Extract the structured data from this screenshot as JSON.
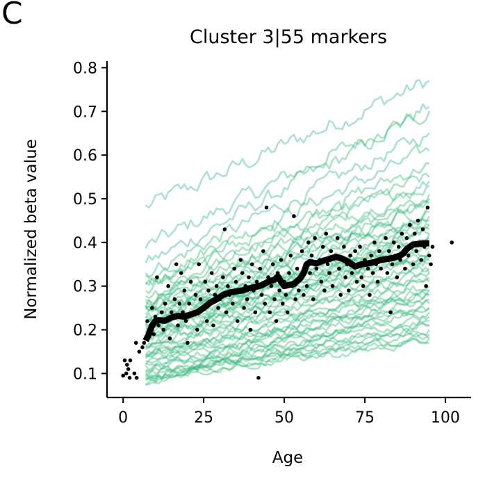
{
  "panel_label": "C",
  "colors": {
    "marker_lines": "#3dbb7f",
    "points": "#000000",
    "trend": "#000000"
  },
  "chart_data": {
    "type": "line",
    "title": "Cluster 3|55 markers",
    "xlabel": "Age",
    "ylabel": "Normalized beta value",
    "xlim": [
      -5,
      108
    ],
    "ylim": [
      0.045,
      0.815
    ],
    "xticks": [
      0,
      25,
      50,
      75,
      100
    ],
    "yticks": [
      0.1,
      0.2,
      0.3,
      0.4,
      0.5,
      0.6,
      0.7,
      0.8
    ],
    "grid": false,
    "legend": "none",
    "marker_lines": {
      "count": 55,
      "age_range": [
        7,
        95
      ],
      "start_values": [
        0.48,
        0.39,
        0.35,
        0.33,
        0.32,
        0.31,
        0.3,
        0.29,
        0.28,
        0.27,
        0.26,
        0.26,
        0.25,
        0.25,
        0.24,
        0.24,
        0.23,
        0.23,
        0.22,
        0.22,
        0.21,
        0.21,
        0.2,
        0.2,
        0.19,
        0.19,
        0.18,
        0.18,
        0.17,
        0.17,
        0.16,
        0.16,
        0.15,
        0.15,
        0.14,
        0.14,
        0.13,
        0.13,
        0.12,
        0.12,
        0.11,
        0.11,
        0.1,
        0.1,
        0.1,
        0.09,
        0.09,
        0.09,
        0.08,
        0.08,
        0.08,
        0.2,
        0.22,
        0.18,
        0.26
      ],
      "end_values": [
        0.77,
        0.71,
        0.7,
        0.65,
        0.61,
        0.58,
        0.55,
        0.54,
        0.53,
        0.51,
        0.5,
        0.49,
        0.48,
        0.47,
        0.46,
        0.45,
        0.44,
        0.43,
        0.42,
        0.42,
        0.41,
        0.4,
        0.39,
        0.38,
        0.37,
        0.36,
        0.35,
        0.34,
        0.33,
        0.32,
        0.31,
        0.3,
        0.29,
        0.28,
        0.28,
        0.27,
        0.26,
        0.25,
        0.24,
        0.23,
        0.22,
        0.21,
        0.2,
        0.19,
        0.18,
        0.18,
        0.17,
        0.21,
        0.25,
        0.29,
        0.33,
        0.37,
        0.4,
        0.44,
        0.36
      ]
    },
    "trend_line": {
      "x": [
        7,
        8,
        9,
        10,
        11,
        13,
        15,
        17,
        19,
        21,
        23,
        25,
        27,
        29,
        31,
        33,
        35,
        37,
        39,
        41,
        43,
        45,
        47,
        48,
        49,
        50,
        51,
        53,
        55,
        56,
        57,
        58,
        60,
        62,
        64,
        66,
        68,
        70,
        72,
        74,
        76,
        78,
        80,
        82,
        84,
        86,
        87,
        88,
        89,
        90,
        92,
        94,
        95
      ],
      "y": [
        0.175,
        0.19,
        0.21,
        0.22,
        0.222,
        0.221,
        0.228,
        0.232,
        0.23,
        0.235,
        0.24,
        0.25,
        0.262,
        0.27,
        0.28,
        0.285,
        0.288,
        0.29,
        0.295,
        0.298,
        0.302,
        0.31,
        0.315,
        0.322,
        0.31,
        0.3,
        0.302,
        0.305,
        0.318,
        0.33,
        0.35,
        0.355,
        0.352,
        0.358,
        0.362,
        0.367,
        0.363,
        0.355,
        0.345,
        0.35,
        0.352,
        0.355,
        0.36,
        0.362,
        0.365,
        0.37,
        0.375,
        0.385,
        0.39,
        0.395,
        0.397,
        0.398,
        0.398
      ]
    },
    "points": [
      [
        0,
        0.095
      ],
      [
        0.5,
        0.13
      ],
      [
        1,
        0.1
      ],
      [
        1.2,
        0.12
      ],
      [
        1.6,
        0.11
      ],
      [
        2,
        0.09
      ],
      [
        2.2,
        0.13
      ],
      [
        3.5,
        0.1
      ],
      [
        4,
        0.17
      ],
      [
        4.2,
        0.09
      ],
      [
        5,
        0.15
      ],
      [
        6,
        0.16
      ],
      [
        6.5,
        0.17
      ],
      [
        7,
        0.18
      ],
      [
        7.5,
        0.22
      ],
      [
        8,
        0.2
      ],
      [
        9,
        0.25
      ],
      [
        9.5,
        0.19
      ],
      [
        10,
        0.23
      ],
      [
        10.5,
        0.32
      ],
      [
        11,
        0.21
      ],
      [
        12,
        0.24
      ],
      [
        12.5,
        0.2
      ],
      [
        13,
        0.26
      ],
      [
        13.5,
        0.22
      ],
      [
        14,
        0.3
      ],
      [
        14.5,
        0.18
      ],
      [
        15,
        0.24
      ],
      [
        16,
        0.27
      ],
      [
        16.5,
        0.35
      ],
      [
        17,
        0.21
      ],
      [
        17.5,
        0.26
      ],
      [
        18,
        0.33
      ],
      [
        18.5,
        0.24
      ],
      [
        19,
        0.29
      ],
      [
        19.5,
        0.22
      ],
      [
        20,
        0.17
      ],
      [
        20.5,
        0.26
      ],
      [
        21,
        0.31
      ],
      [
        22,
        0.24
      ],
      [
        22.5,
        0.28
      ],
      [
        23,
        0.2
      ],
      [
        23.5,
        0.35
      ],
      [
        24,
        0.27
      ],
      [
        25,
        0.25
      ],
      [
        25.5,
        0.31
      ],
      [
        26,
        0.22
      ],
      [
        26.5,
        0.29
      ],
      [
        27,
        0.26
      ],
      [
        27.5,
        0.33
      ],
      [
        28,
        0.21
      ],
      [
        28.5,
        0.28
      ],
      [
        29,
        0.3
      ],
      [
        29.5,
        0.25
      ],
      [
        30,
        0.27
      ],
      [
        31,
        0.32
      ],
      [
        31.5,
        0.43
      ],
      [
        32,
        0.24
      ],
      [
        32.5,
        0.3
      ],
      [
        33,
        0.28
      ],
      [
        34,
        0.26
      ],
      [
        34.5,
        0.34
      ],
      [
        35,
        0.31
      ],
      [
        35.5,
        0.22
      ],
      [
        36,
        0.29
      ],
      [
        36.5,
        0.36
      ],
      [
        37,
        0.33
      ],
      [
        37.5,
        0.25
      ],
      [
        38,
        0.3
      ],
      [
        38.5,
        0.27
      ],
      [
        39,
        0.32
      ],
      [
        39.5,
        0.2
      ],
      [
        40,
        0.35
      ],
      [
        40.5,
        0.29
      ],
      [
        41,
        0.24
      ],
      [
        41.5,
        0.31
      ],
      [
        42,
        0.09
      ],
      [
        42.5,
        0.34
      ],
      [
        43,
        0.28
      ],
      [
        43.5,
        0.38
      ],
      [
        44,
        0.26
      ],
      [
        44.5,
        0.48
      ],
      [
        45,
        0.32
      ],
      [
        45.5,
        0.24
      ],
      [
        46,
        0.3
      ],
      [
        46.5,
        0.35
      ],
      [
        47,
        0.27
      ],
      [
        47.5,
        0.22
      ],
      [
        48,
        0.33
      ],
      [
        48.5,
        0.29
      ],
      [
        49,
        0.36
      ],
      [
        49.5,
        0.26
      ],
      [
        50,
        0.31
      ],
      [
        50.5,
        0.28
      ],
      [
        51,
        0.24
      ],
      [
        51.5,
        0.33
      ],
      [
        52,
        0.37
      ],
      [
        52.5,
        0.3
      ],
      [
        53,
        0.46
      ],
      [
        53.5,
        0.27
      ],
      [
        54,
        0.34
      ],
      [
        54.5,
        0.29
      ],
      [
        55,
        0.32
      ],
      [
        55.5,
        0.38
      ],
      [
        56,
        0.28
      ],
      [
        56.5,
        0.35
      ],
      [
        57,
        0.3
      ],
      [
        57.5,
        0.4
      ],
      [
        58,
        0.33
      ],
      [
        58.5,
        0.37
      ],
      [
        59,
        0.27
      ],
      [
        59.5,
        0.41
      ],
      [
        60,
        0.34
      ],
      [
        61,
        0.36
      ],
      [
        61.5,
        0.31
      ],
      [
        62,
        0.39
      ],
      [
        62.5,
        0.29
      ],
      [
        63,
        0.42
      ],
      [
        63.5,
        0.35
      ],
      [
        64,
        0.33
      ],
      [
        64.5,
        0.38
      ],
      [
        65,
        0.3
      ],
      [
        66,
        0.37
      ],
      [
        66.5,
        0.41
      ],
      [
        67,
        0.34
      ],
      [
        67.5,
        0.28
      ],
      [
        68,
        0.36
      ],
      [
        68.5,
        0.39
      ],
      [
        69,
        0.32
      ],
      [
        69.5,
        0.35
      ],
      [
        70,
        0.29
      ],
      [
        70.5,
        0.37
      ],
      [
        71,
        0.33
      ],
      [
        72,
        0.38
      ],
      [
        72.5,
        0.31
      ],
      [
        73,
        0.35
      ],
      [
        73.5,
        0.39
      ],
      [
        74,
        0.32
      ],
      [
        74.5,
        0.3
      ],
      [
        75,
        0.36
      ],
      [
        76,
        0.34
      ],
      [
        76.5,
        0.28
      ],
      [
        77,
        0.37
      ],
      [
        77.5,
        0.33
      ],
      [
        78,
        0.4
      ],
      [
        78.5,
        0.35
      ],
      [
        79,
        0.31
      ],
      [
        79.5,
        0.38
      ],
      [
        80,
        0.34
      ],
      [
        81,
        0.36
      ],
      [
        81.5,
        0.41
      ],
      [
        82,
        0.33
      ],
      [
        82.5,
        0.38
      ],
      [
        83,
        0.24
      ],
      [
        83.5,
        0.35
      ],
      [
        84,
        0.4
      ],
      [
        84.5,
        0.37
      ],
      [
        85,
        0.32
      ],
      [
        85.5,
        0.39
      ],
      [
        86,
        0.36
      ],
      [
        86.5,
        0.42
      ],
      [
        87,
        0.38
      ],
      [
        87.5,
        0.34
      ],
      [
        88,
        0.41
      ],
      [
        88.5,
        0.37
      ],
      [
        89,
        0.44
      ],
      [
        89.5,
        0.39
      ],
      [
        90,
        0.35
      ],
      [
        90.5,
        0.42
      ],
      [
        91,
        0.38
      ],
      [
        91.5,
        0.45
      ],
      [
        92,
        0.4
      ],
      [
        92.5,
        0.36
      ],
      [
        93,
        0.43
      ],
      [
        93.5,
        0.39
      ],
      [
        94,
        0.3
      ],
      [
        94.5,
        0.48
      ],
      [
        95,
        0.37
      ],
      [
        95.5,
        0.35
      ],
      [
        96,
        0.39
      ],
      [
        102,
        0.4
      ]
    ]
  }
}
